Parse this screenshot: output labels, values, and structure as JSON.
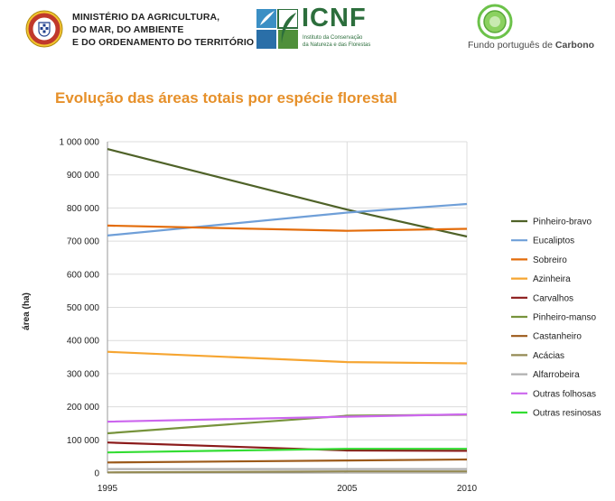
{
  "header": {
    "ministry_lines": [
      "MINISTÉRIO DA AGRICULTURA,",
      "DO MAR, DO AMBIENTE",
      "E DO ORDENAMENTO DO TERRITÓRIO"
    ],
    "icnf_name": "ICNF",
    "icnf_sub_lines": [
      "Instituto da Conservação",
      "da Natureza e das Florestas"
    ],
    "fpc_text_prefix": "Fundo português de ",
    "fpc_text_bold": "Carbono"
  },
  "colors": {
    "title": "#e6902a",
    "icnf_green": "#2c6e3c",
    "icnf_blue": "#2a6fa8",
    "fpc_green": "#6cc24a"
  },
  "chart_data": {
    "type": "line",
    "title": "Evolução das áreas totais por espécie florestal",
    "xlabel": "",
    "ylabel": "área (ha)",
    "x": [
      1995,
      2005,
      2010
    ],
    "xticks": [
      "1995",
      "2005",
      "2010"
    ],
    "xlim": [
      1995,
      2010
    ],
    "ylim": [
      0,
      1000000
    ],
    "yticks": [
      "0",
      "100 000",
      "200 000",
      "300 000",
      "400 000",
      "500 000",
      "600 000",
      "700 000",
      "800 000",
      "900 000",
      "1 000 000"
    ],
    "grid": true,
    "legend_position": "right",
    "series": [
      {
        "name": "Pinheiro-bravo",
        "color": "#4f6228",
        "values": [
          978000,
          795000,
          714000
        ]
      },
      {
        "name": "Eucaliptos",
        "color": "#6f9fd8",
        "values": [
          717000,
          786000,
          812000
        ]
      },
      {
        "name": "Sobreiro",
        "color": "#e36c0a",
        "values": [
          747000,
          731000,
          737000
        ]
      },
      {
        "name": "Azinheira",
        "color": "#f6a531",
        "values": [
          366000,
          335000,
          331000
        ]
      },
      {
        "name": "Carvalhos",
        "color": "#8b1a1a",
        "values": [
          92000,
          68000,
          67000
        ]
      },
      {
        "name": "Pinheiro-manso",
        "color": "#77933c",
        "values": [
          120000,
          173000,
          176000
        ]
      },
      {
        "name": "Castanheiro",
        "color": "#9c5a1a",
        "values": [
          32000,
          38000,
          41000
        ]
      },
      {
        "name": "Acácias",
        "color": "#948a54",
        "values": [
          2000,
          5000,
          5000
        ]
      },
      {
        "name": "Alfarrobeira",
        "color": "#b0b0b0",
        "values": [
          12000,
          12000,
          12000
        ]
      },
      {
        "name": "Outras folhosas",
        "color": "#cc66ee",
        "values": [
          155000,
          170000,
          177000
        ]
      },
      {
        "name": "Outras resinosas",
        "color": "#33dd33",
        "values": [
          62000,
          73000,
          73000
        ]
      }
    ]
  }
}
